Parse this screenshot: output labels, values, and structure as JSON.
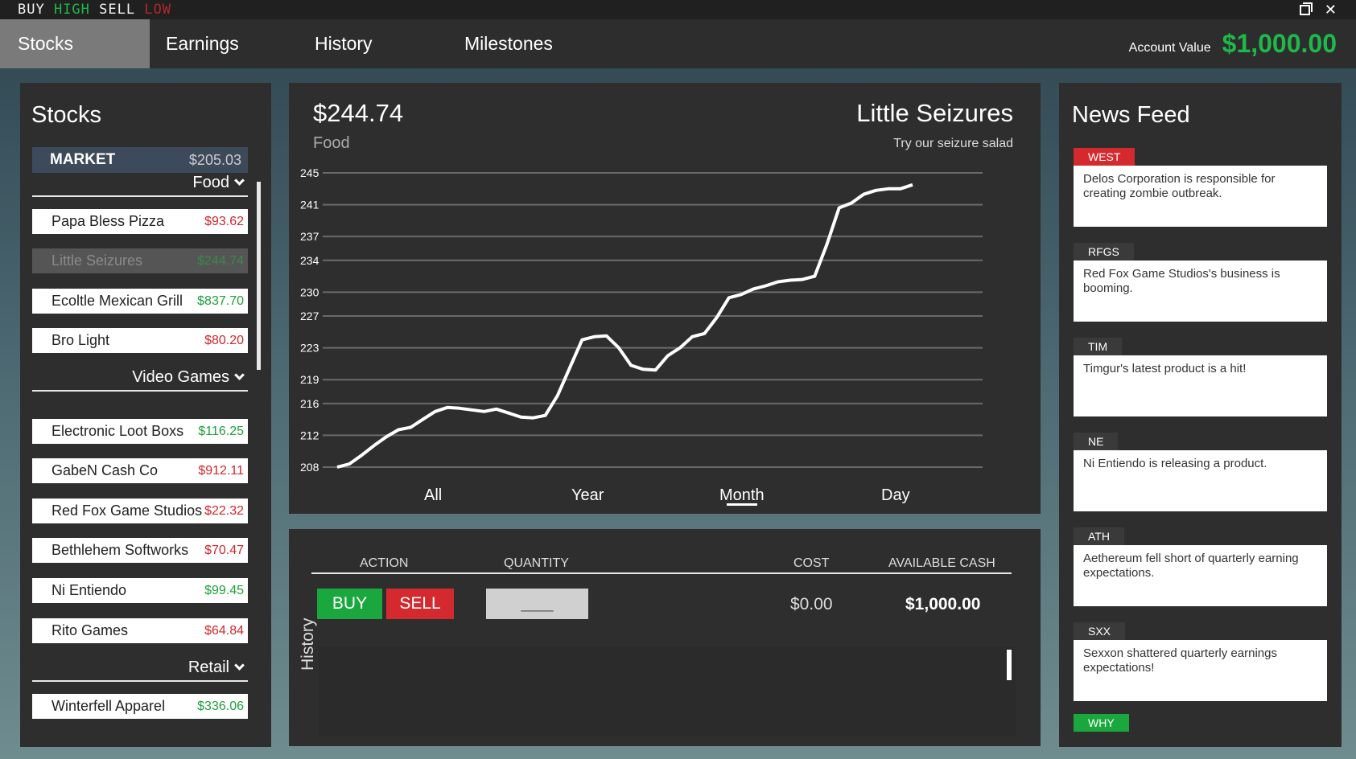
{
  "window": {
    "title_parts": [
      {
        "text": "BUY ",
        "color": "#f2f2f2"
      },
      {
        "text": "HIGH",
        "color": "#1fb84a"
      },
      {
        "text": " SELL ",
        "color": "#f2f2f2"
      },
      {
        "text": "LOW",
        "color": "#b3272b"
      }
    ],
    "close_glyph": "✕"
  },
  "nav": {
    "tabs": [
      {
        "label": "Stocks",
        "active": true
      },
      {
        "label": "Earnings",
        "active": false
      },
      {
        "label": "History",
        "active": false
      },
      {
        "label": "Milestones",
        "active": false
      }
    ],
    "account_label": "Account Value",
    "account_value": "$1,000.00"
  },
  "stocks": {
    "title": "Stocks",
    "market_label": "MARKET",
    "market_value": "$205.03",
    "categories": {
      "food": "Food",
      "video_games": "Video Games",
      "retail": "Retail"
    },
    "items": [
      {
        "name": "Papa Bless Pizza",
        "price": "$93.62",
        "trend": "down"
      },
      {
        "name": "Little Seizures",
        "price": "$244.74",
        "trend": "up",
        "selected": true
      },
      {
        "name": "Ecoltle Mexican Grill",
        "price": "$837.70",
        "trend": "up"
      },
      {
        "name": "Bro Light",
        "price": "$80.20",
        "trend": "down"
      },
      {
        "name": "Electronic Loot Boxs",
        "price": "$116.25",
        "trend": "up"
      },
      {
        "name": "GabeN Cash Co",
        "price": "$912.11",
        "trend": "down"
      },
      {
        "name": "Red Fox Game Studios",
        "price": "$22.32",
        "trend": "down"
      },
      {
        "name": "Bethlehem Softworks",
        "price": "$70.47",
        "trend": "down"
      },
      {
        "name": "Ni Entiendo",
        "price": "$99.45",
        "trend": "up"
      },
      {
        "name": "Rito Games",
        "price": "$64.84",
        "trend": "down"
      },
      {
        "name": "Winterfell Apparel",
        "price": "$336.06",
        "trend": "up"
      }
    ]
  },
  "chart": {
    "price": "$244.74",
    "category": "Food",
    "company": "Little Seizures",
    "slogan": "Try our seizure salad",
    "ranges": [
      "All",
      "Year",
      "Month",
      "Day"
    ],
    "active_range": "Month"
  },
  "chart_data": {
    "type": "line",
    "title": "Little Seizures",
    "xlabel": "",
    "ylabel": "",
    "y_ticks": [
      208,
      212,
      216,
      219,
      223,
      227,
      230,
      234,
      237,
      241,
      245
    ],
    "ylim": [
      208,
      245
    ],
    "grid": true,
    "series": [
      {
        "values": [
          208.0,
          208.4,
          209.5,
          210.7,
          211.8,
          212.7,
          213.0,
          214.0,
          215.0,
          215.5,
          215.4,
          215.2,
          215.0,
          215.3,
          214.8,
          214.3,
          214.2,
          214.5,
          217.0,
          220.5,
          224.0,
          224.4,
          224.5,
          223.0,
          220.8,
          220.3,
          220.2,
          222.0,
          223.0,
          224.4,
          224.8,
          226.8,
          229.3,
          229.7,
          230.4,
          230.8,
          231.3,
          231.5,
          231.6,
          232.0,
          236.0,
          240.6,
          241.2,
          242.3,
          242.8,
          243.0,
          243.0,
          243.5
        ]
      }
    ]
  },
  "trade": {
    "headers": {
      "action": "ACTION",
      "quantity": "QUANTITY",
      "cost": "COST",
      "available_cash": "AVAILABLE CASH"
    },
    "buy_label": "BUY",
    "sell_label": "SELL",
    "quantity_value": "____",
    "cost_value": "$0.00",
    "cash_value": "$1,000.00",
    "history_label": "History"
  },
  "news": {
    "title": "News Feed",
    "items": [
      {
        "tag": "WEST",
        "text": "Delos Corporation is responsible for creating zombie outbreak.",
        "tag_style": "red"
      },
      {
        "tag": "RFGS",
        "text": "Red Fox Game Studios's business is booming.",
        "tag_style": "dark"
      },
      {
        "tag": "TIM",
        "text": "Timgur's latest product is a hit!",
        "tag_style": "dark"
      },
      {
        "tag": "NE",
        "text": "Ni Entiendo is releasing a product.",
        "tag_style": "dark"
      },
      {
        "tag": "ATH",
        "text": "Aethereum fell short of quarterly earning expectations.",
        "tag_style": "dark"
      },
      {
        "tag": "SXX",
        "text": "Sexxon shattered quarterly earnings expectations!",
        "tag_style": "dark"
      },
      {
        "tag": "WHY",
        "text": "",
        "tag_style": "green"
      }
    ]
  }
}
